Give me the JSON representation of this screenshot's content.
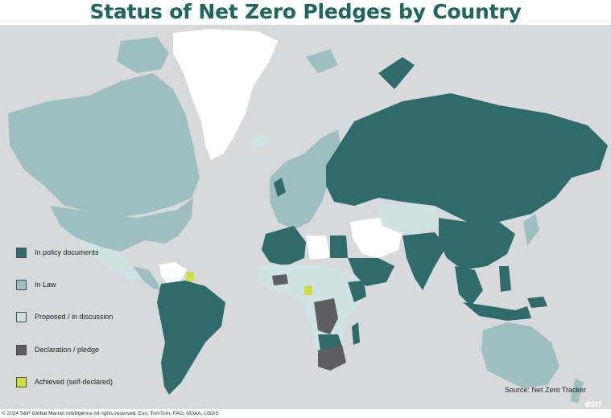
{
  "title": "Status of Net Zero Pledges by Country",
  "legend": [
    {
      "label": "In policy documents",
      "color": "#2f6b6a"
    },
    {
      "label": "In Law",
      "color": "#9ebfc2"
    },
    {
      "label": "Proposed / in discussion",
      "color": "#cfe3e4"
    },
    {
      "label": "Declaration / pledge",
      "color": "#5e5e60"
    },
    {
      "label": "Achieved (self-declared)",
      "color": "#cfdf3d"
    }
  ],
  "colors": {
    "ocean": "#d8d9da",
    "no_data": "#ffffff",
    "title": "#1e6660"
  },
  "source": "Source: Net Zero Tracker",
  "esri_logo": "esri",
  "attribution": "© 2024 S&P Global Market Intelligence All rights reserved. Esri, TomTom, FAO, NOAA, USGS"
}
